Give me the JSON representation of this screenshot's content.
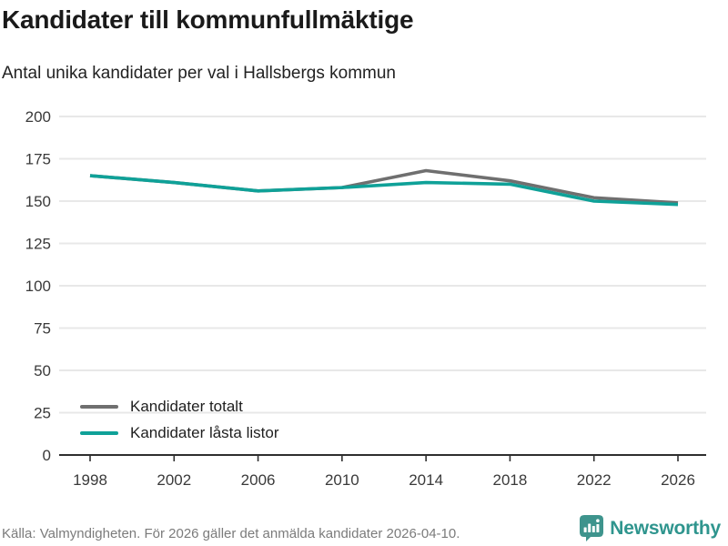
{
  "header": {
    "title": "Kandidater till kommunfullmäktige",
    "subtitle": "Antal unika kandidater per val i Hallsbergs kommun"
  },
  "chart_data": {
    "type": "line",
    "title": "Kandidater till kommunfullmäktige",
    "subtitle": "Antal unika kandidater per val i Hallsbergs kommun",
    "x": [
      1998,
      2002,
      2006,
      2010,
      2014,
      2018,
      2022,
      2026
    ],
    "series": [
      {
        "name": "Kandidater totalt",
        "color": "#6f6f6f",
        "values": [
          165,
          161,
          156,
          158,
          168,
          162,
          152,
          149
        ]
      },
      {
        "name": "Kandidater låsta listor",
        "color": "#0fa198",
        "values": [
          165,
          161,
          156,
          158,
          161,
          160,
          150,
          148
        ]
      }
    ],
    "xlabel": "",
    "ylabel": "",
    "ylim": [
      0,
      200
    ],
    "ytick_step": 25,
    "grid": true,
    "gridline_color": "#e8e8e8",
    "axis_color": "#2e2e2e",
    "tick_label_color": "#3a3a3a",
    "legend_position": "bottom-left-inside"
  },
  "footer": {
    "source": "Källa: Valmyndigheten. För 2026 gäller det anmälda kandidater 2026-04-10.",
    "brand": "Newsworthy",
    "brand_color": "#2f958e",
    "brand_icon": "speech-bubble-bar-chart"
  }
}
